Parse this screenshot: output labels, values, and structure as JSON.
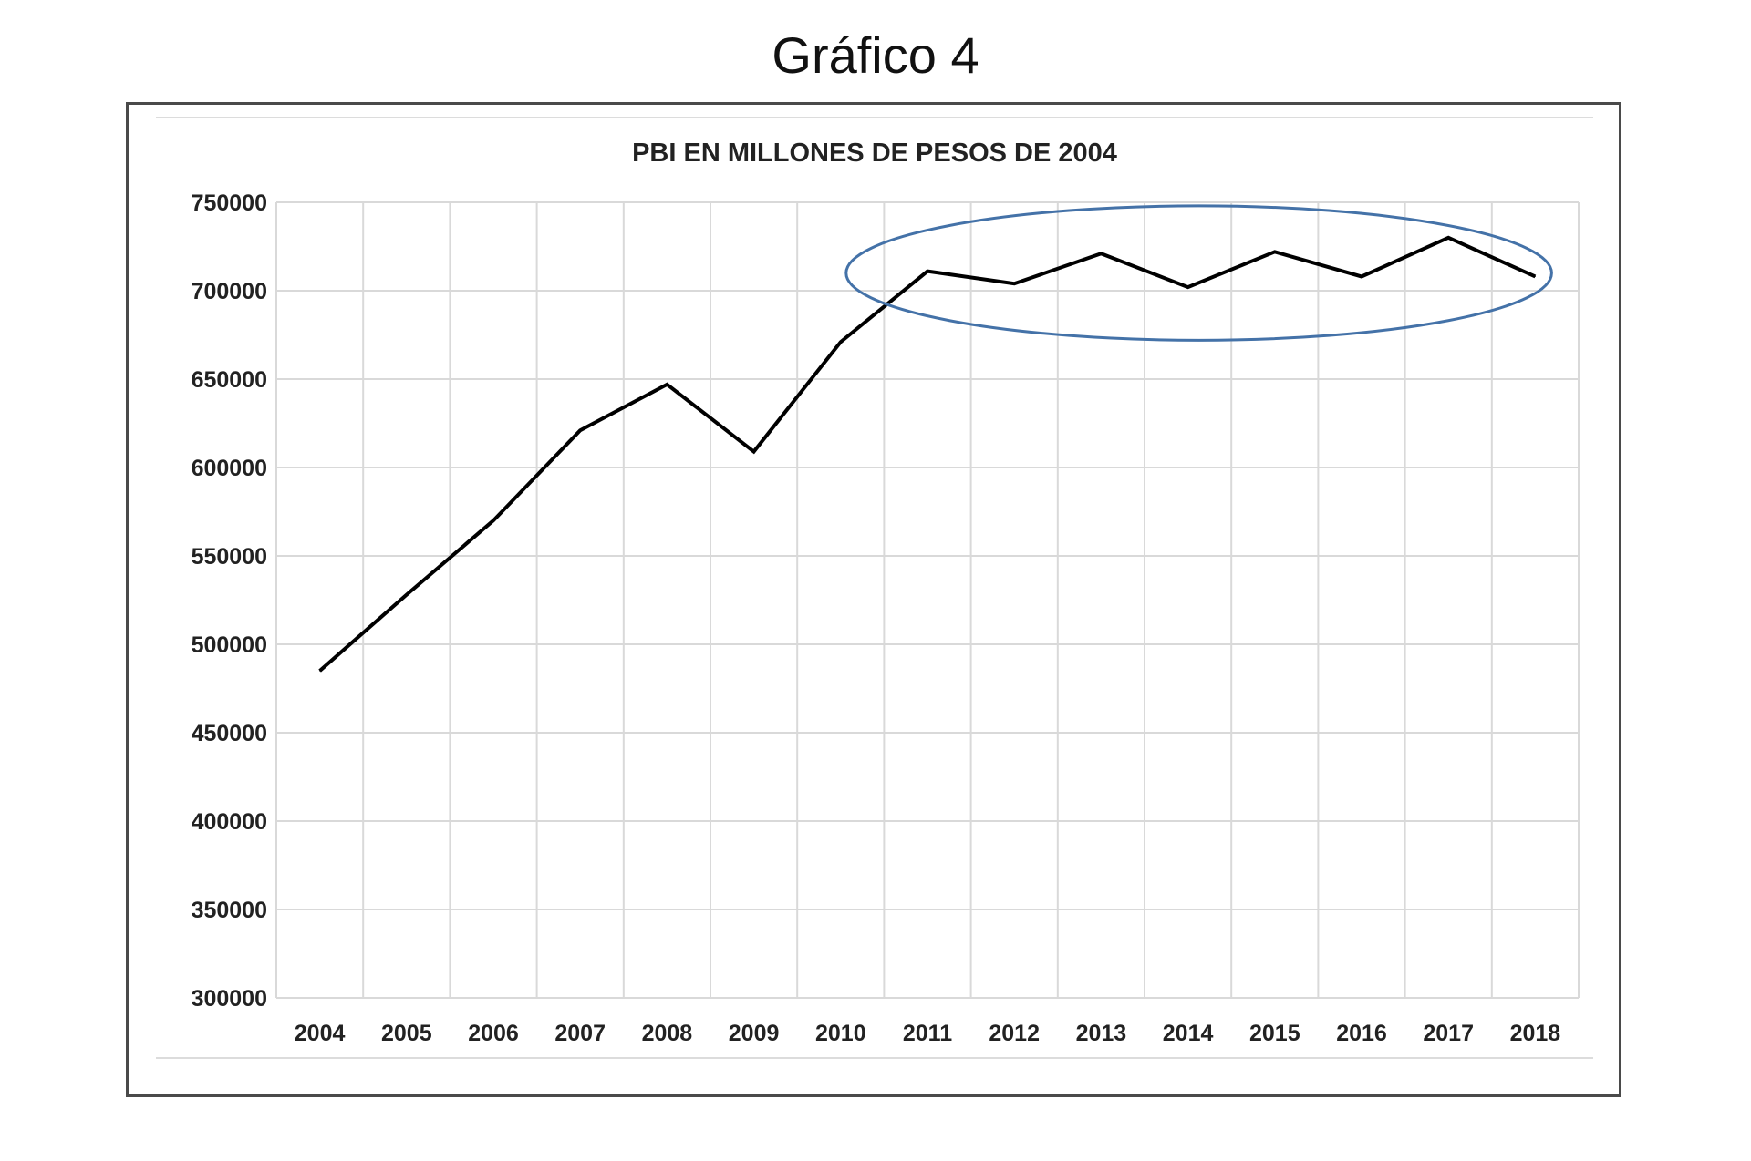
{
  "page": {
    "title": "Gráfico 4"
  },
  "chart_data": {
    "type": "line",
    "title": "PBI EN MILLONES DE PESOS DE 2004",
    "xlabel": "",
    "ylabel": "",
    "x": [
      "2004",
      "2005",
      "2006",
      "2007",
      "2008",
      "2009",
      "2010",
      "2011",
      "2012",
      "2013",
      "2014",
      "2015",
      "2016",
      "2017",
      "2018"
    ],
    "series": [
      {
        "values": [
          485000,
          528000,
          570000,
          621000,
          647000,
          609000,
          671000,
          711000,
          704000,
          721000,
          702000,
          722000,
          708000,
          730000,
          708000
        ]
      }
    ],
    "ylim": [
      300000,
      750000
    ],
    "yticks": [
      300000,
      350000,
      400000,
      450000,
      500000,
      550000,
      600000,
      650000,
      700000,
      750000
    ],
    "grid": true,
    "colors": {
      "line": "#000000",
      "grid": "#d9d9d9",
      "annotation": "#4472a8"
    },
    "annotations": [
      {
        "type": "ellipse",
        "x_range": [
          "2010",
          "2018"
        ],
        "y_center": 710000,
        "y_halfrange": 38000
      }
    ]
  }
}
